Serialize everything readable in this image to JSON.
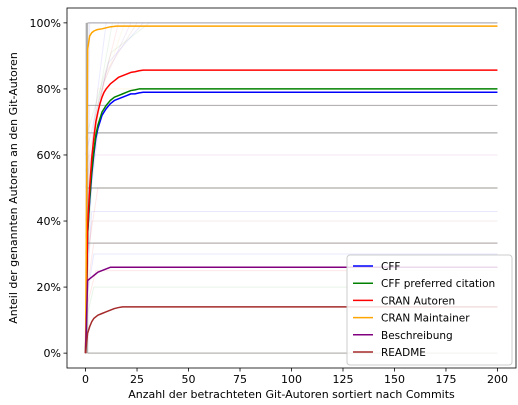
{
  "chart_data": {
    "type": "line",
    "xlabel": "Anzahl der betrachteten Git-Autoren sortiert nach Commits",
    "ylabel": "Anteil der genannten Autoren an den Git-Autoren",
    "xlim": [
      -9,
      209
    ],
    "ylim": [
      -0.045,
      1.045
    ],
    "x_ticks": [
      0,
      25,
      50,
      75,
      100,
      125,
      150,
      175,
      200
    ],
    "x_tick_labels": [
      "0",
      "25",
      "50",
      "75",
      "100",
      "125",
      "150",
      "175",
      "200"
    ],
    "y_ticks": [
      0,
      0.2,
      0.4,
      0.6,
      0.8,
      1.0
    ],
    "y_tick_labels": [
      "0%",
      "20%",
      "40%",
      "60%",
      "80%",
      "100%"
    ],
    "legend_position": "lower-right",
    "grid": false,
    "series": [
      {
        "name": "CFF",
        "color": "#0000ff",
        "x": [
          0,
          1,
          2,
          3,
          4,
          5,
          6,
          7,
          8,
          9,
          10,
          12,
          14,
          16,
          18,
          20,
          22,
          24,
          26,
          28,
          30,
          200
        ],
        "y": [
          0.0,
          0.36,
          0.46,
          0.54,
          0.6,
          0.65,
          0.68,
          0.7,
          0.72,
          0.73,
          0.74,
          0.755,
          0.765,
          0.77,
          0.775,
          0.78,
          0.785,
          0.785,
          0.788,
          0.79,
          0.79,
          0.79
        ]
      },
      {
        "name": "CFF preferred citation",
        "color": "#008000",
        "x": [
          0,
          1,
          2,
          3,
          4,
          5,
          6,
          7,
          8,
          9,
          10,
          12,
          14,
          16,
          18,
          20,
          22,
          24,
          26,
          28,
          30,
          200
        ],
        "y": [
          0.0,
          0.36,
          0.47,
          0.55,
          0.61,
          0.66,
          0.69,
          0.71,
          0.73,
          0.74,
          0.75,
          0.765,
          0.775,
          0.78,
          0.785,
          0.79,
          0.795,
          0.797,
          0.8,
          0.8,
          0.8,
          0.8
        ]
      },
      {
        "name": "CRAN Autoren",
        "color": "#ff0000",
        "x": [
          0,
          1,
          2,
          3,
          4,
          5,
          6,
          7,
          8,
          9,
          10,
          12,
          14,
          16,
          18,
          20,
          22,
          24,
          26,
          28,
          30,
          200
        ],
        "y": [
          0.0,
          0.38,
          0.5,
          0.59,
          0.65,
          0.7,
          0.73,
          0.755,
          0.775,
          0.79,
          0.8,
          0.815,
          0.825,
          0.835,
          0.84,
          0.845,
          0.85,
          0.852,
          0.855,
          0.857,
          0.857,
          0.857
        ]
      },
      {
        "name": "CRAN Maintainer",
        "color": "#ffa500",
        "x": [
          0,
          1,
          2,
          3,
          4,
          5,
          6,
          8,
          10,
          12,
          15,
          20,
          200
        ],
        "y": [
          0.0,
          0.92,
          0.96,
          0.97,
          0.975,
          0.978,
          0.98,
          0.982,
          0.985,
          0.988,
          0.99,
          0.99,
          0.99
        ]
      },
      {
        "name": "Beschreibung",
        "color": "#800080",
        "x": [
          0,
          1,
          2,
          3,
          4,
          5,
          6,
          8,
          10,
          12,
          200
        ],
        "y": [
          0.0,
          0.22,
          0.225,
          0.23,
          0.235,
          0.24,
          0.245,
          0.25,
          0.255,
          0.26,
          0.26
        ]
      },
      {
        "name": "README",
        "color": "#a52a2a",
        "x": [
          0,
          1,
          2,
          3,
          4,
          5,
          6,
          8,
          10,
          12,
          14,
          16,
          18,
          20,
          200
        ],
        "y": [
          0.0,
          0.06,
          0.08,
          0.095,
          0.105,
          0.11,
          0.115,
          0.12,
          0.125,
          0.13,
          0.135,
          0.138,
          0.14,
          0.14,
          0.14
        ]
      }
    ],
    "background_lines": {
      "alpha_levels": [
        1.0,
        0.5,
        0.333,
        0.0,
        0.667,
        0.75,
        0.429,
        0.2,
        0.25,
        0.8,
        0.6,
        0.4,
        0.3,
        0.667,
        0.5
      ],
      "gray_levels": [
        1.0,
        0.5,
        0.333,
        0.667,
        0.75,
        0.0
      ]
    }
  }
}
